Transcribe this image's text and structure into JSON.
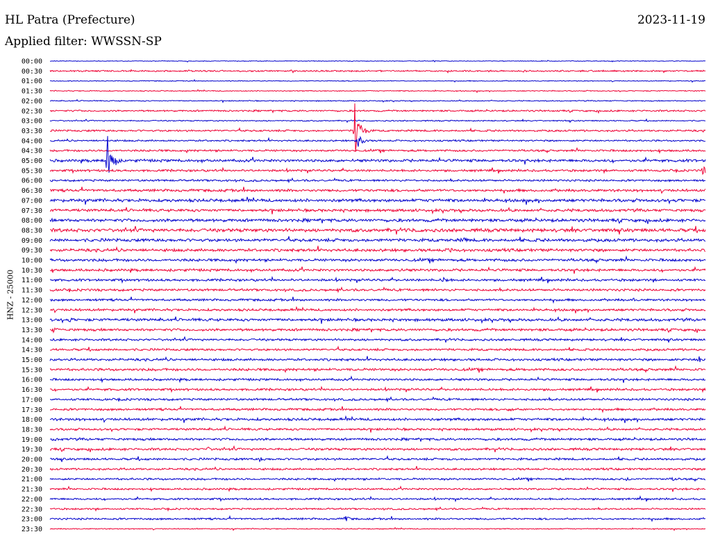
{
  "header": {
    "station": "HL Patra (Prefecture)",
    "date": "2023-11-19",
    "filter": "Applied filter: WWSSN-SP"
  },
  "chart_data": {
    "type": "line",
    "chart_kind": "helicorder",
    "ylabel": "HNZ - 25000",
    "row_labels": [
      "00:00",
      "00:30",
      "01:00",
      "01:30",
      "02:00",
      "02:30",
      "03:00",
      "03:30",
      "04:00",
      "04:30",
      "05:00",
      "05:30",
      "06:00",
      "06:30",
      "07:00",
      "07:30",
      "08:00",
      "08:30",
      "09:00",
      "09:30",
      "10:00",
      "10:30",
      "11:00",
      "11:30",
      "12:00",
      "12:30",
      "13:00",
      "13:30",
      "14:00",
      "14:30",
      "15:00",
      "15:30",
      "16:00",
      "16:30",
      "17:00",
      "17:30",
      "18:00",
      "18:30",
      "19:00",
      "19:30",
      "20:00",
      "20:30",
      "21:00",
      "21:30",
      "22:00",
      "22:30",
      "23:00",
      "23:30"
    ],
    "colors": {
      "even_rows": "#0000cc",
      "odd_rows": "#ee0033",
      "background": "#ffffff"
    },
    "noise_level": [
      0.4,
      0.9,
      0.5,
      0.6,
      0.6,
      1.0,
      0.7,
      1.1,
      1.0,
      1.2,
      1.6,
      1.3,
      1.2,
      1.5,
      1.8,
      1.6,
      1.8,
      2.0,
      1.8,
      1.7,
      1.6,
      1.5,
      1.4,
      1.4,
      1.3,
      1.4,
      1.6,
      1.5,
      1.3,
      1.3,
      1.4,
      1.5,
      1.3,
      1.3,
      1.3,
      1.3,
      1.5,
      1.3,
      1.4,
      1.4,
      1.3,
      1.2,
      1.2,
      1.1,
      1.1,
      1.0,
      1.1,
      0.6
    ],
    "events": [
      {
        "row": 10,
        "x": 0.087,
        "amplitude": 42
      },
      {
        "row": 7,
        "x": 0.465,
        "amplitude": 42
      },
      {
        "row": 8,
        "x": 0.47,
        "amplitude": 10
      },
      {
        "row": 11,
        "x": 0.996,
        "amplitude": 7
      },
      {
        "row": 14,
        "x": 0.58,
        "amplitude": 4
      },
      {
        "row": 17,
        "x": 0.56,
        "amplitude": 5
      },
      {
        "row": 18,
        "x": 0.63,
        "amplitude": 5
      },
      {
        "row": 19,
        "x": 0.61,
        "amplitude": 6
      },
      {
        "row": 21,
        "x": 0.53,
        "amplitude": 5
      },
      {
        "row": 22,
        "x": 0.6,
        "amplitude": 6
      },
      {
        "row": 24,
        "x": 0.89,
        "amplitude": 3
      },
      {
        "row": 26,
        "x": 0.03,
        "amplitude": 4
      },
      {
        "row": 27,
        "x": 0.005,
        "amplitude": 5
      },
      {
        "row": 30,
        "x": 0.99,
        "amplitude": 6
      },
      {
        "row": 35,
        "x": 0.7,
        "amplitude": 5
      },
      {
        "row": 38,
        "x": 0.01,
        "amplitude": 4
      },
      {
        "row": 39,
        "x": 0.24,
        "amplitude": 4
      },
      {
        "row": 40,
        "x": 0.32,
        "amplitude": 4
      },
      {
        "row": 42,
        "x": 0.88,
        "amplitude": 3
      },
      {
        "row": 42,
        "x": 0.95,
        "amplitude": 3
      },
      {
        "row": 46,
        "x": 0.45,
        "amplitude": 6
      }
    ]
  }
}
